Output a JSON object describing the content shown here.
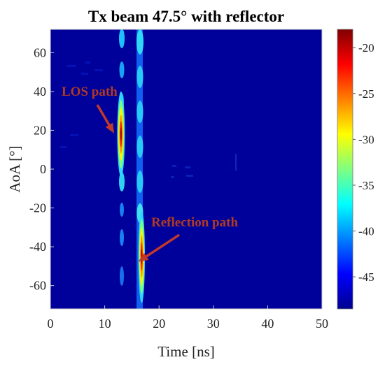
{
  "chart_data": {
    "type": "heatmap",
    "title": "Tx beam 47.5° with reflector",
    "xlabel": "Time [ns]",
    "ylabel": "AoA [°]",
    "xlim": [
      0,
      50
    ],
    "ylim": [
      -72,
      72
    ],
    "xticks": [
      "0",
      "10",
      "20",
      "30",
      "40",
      "50"
    ],
    "yticks": [
      "60",
      "40",
      "20",
      "0",
      "-20",
      "-40",
      "-60"
    ],
    "colorbar": {
      "range": [
        -48.5,
        -18
      ],
      "ticks": [
        "-20",
        "-25",
        "-30",
        "-35",
        "-40",
        "-45"
      ],
      "colormap": "jet"
    },
    "background_level_db": -48,
    "features": [
      {
        "x": 13.0,
        "y": 18,
        "peak_db": -19,
        "x_width": 0.7,
        "y_width": 11
      },
      {
        "x": 16.8,
        "y": -45,
        "peak_db": -18.5,
        "x_width": 0.6,
        "y_width": 12
      }
    ],
    "annotations": [
      {
        "text": "LOS path",
        "target_x": 12.5,
        "target_y": 17
      },
      {
        "text": "Reflection path",
        "target_x": 17.2,
        "target_y": -47
      }
    ]
  }
}
